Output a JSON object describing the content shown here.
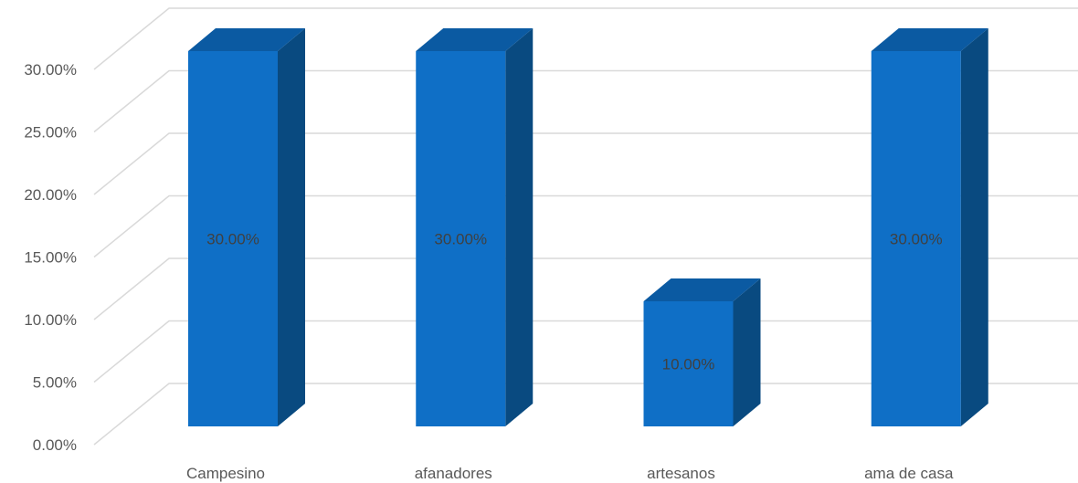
{
  "chart_data": {
    "type": "bar",
    "style": "3d-column",
    "categories": [
      "Campesino",
      "afanadores",
      "artesanos",
      "ama de casa"
    ],
    "values": [
      30,
      30,
      10,
      30
    ],
    "data_labels": [
      "30.00%",
      "30.00%",
      "10.00%",
      "30.00%"
    ],
    "title": "",
    "xlabel": "",
    "ylabel": "",
    "ylim": [
      0,
      30
    ],
    "yticks": [
      0,
      5,
      10,
      15,
      20,
      25,
      30
    ],
    "ytick_labels": [
      "0.00%",
      "5.00%",
      "10.00%",
      "15.00%",
      "20.00%",
      "25.00%",
      "30.00%"
    ],
    "grid": true,
    "legend": "none",
    "colors": {
      "bar_front": "#0F6FC6",
      "bar_side": "#094A80",
      "bar_top": "#0B5AA2",
      "gridline": "#D9D9D9",
      "text": "#595959"
    }
  }
}
